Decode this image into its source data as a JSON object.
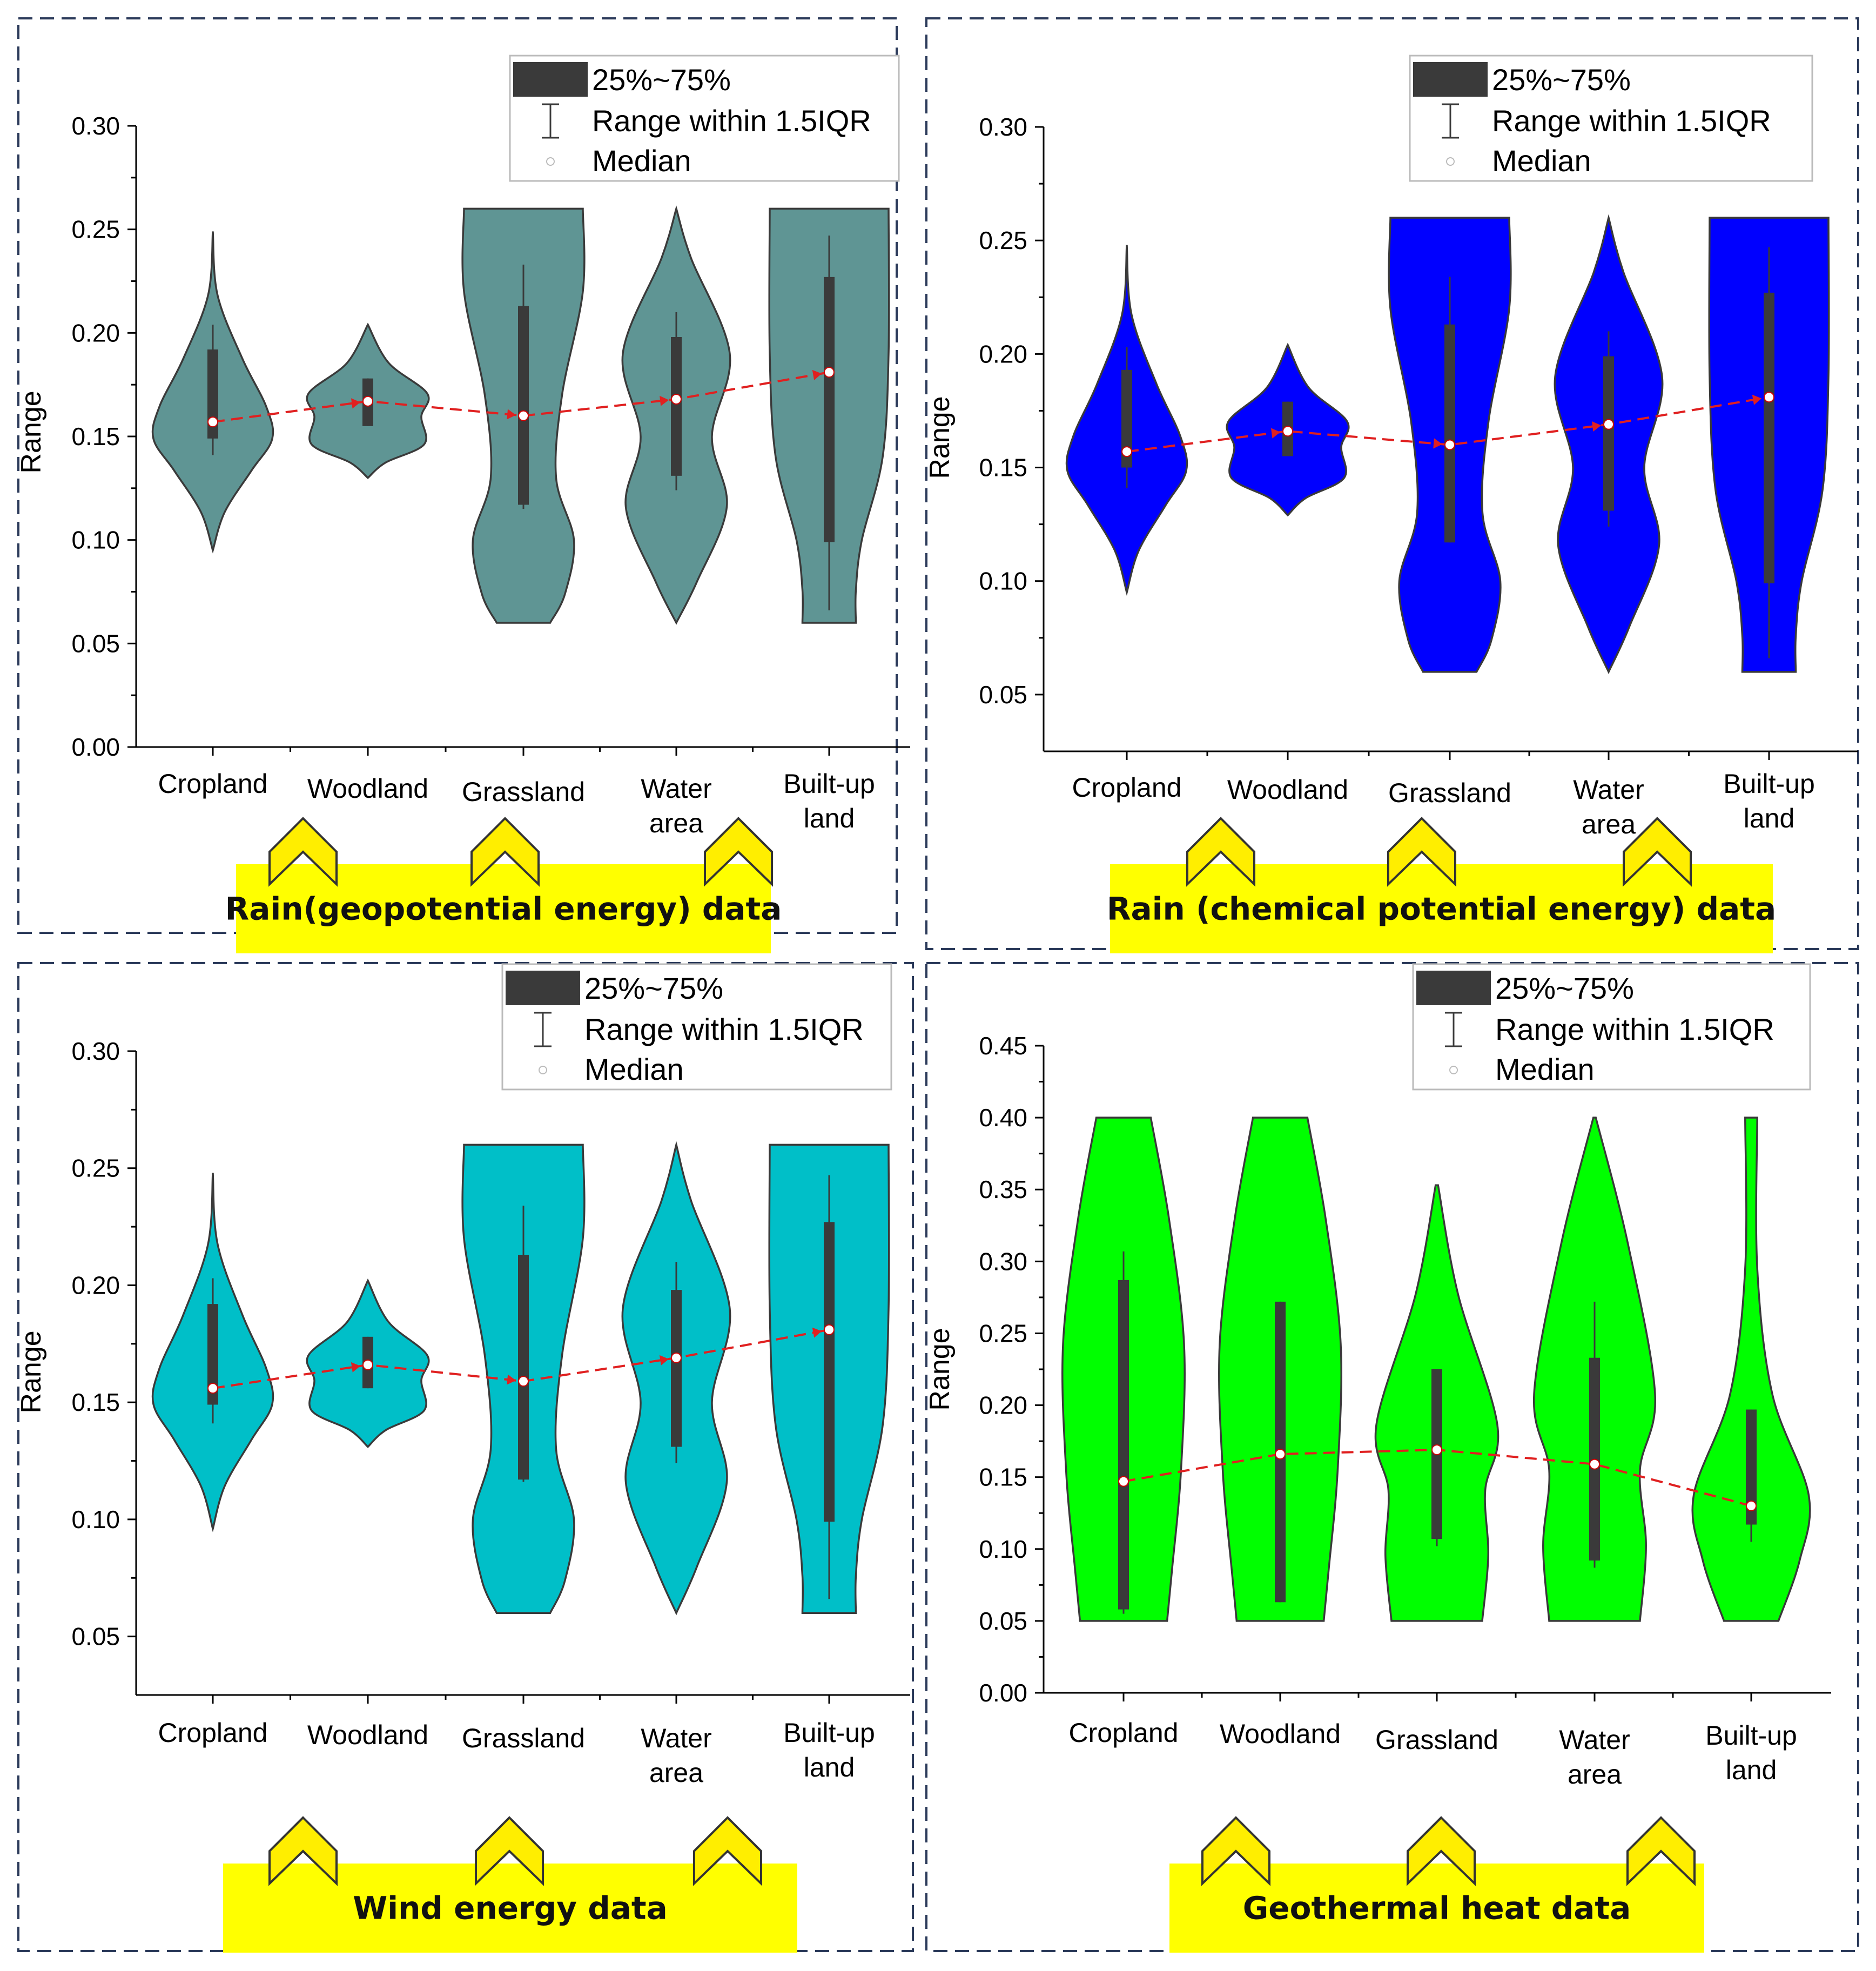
{
  "legend": {
    "iqr_label": "25%~75%",
    "range_label": "Range within 1.5IQR",
    "median_label": "Median"
  },
  "colors": {
    "iqr_box": "#3a3a3a",
    "trend_line": "#e02020",
    "banner": "#ffff00",
    "chevron": "#ffee00",
    "frame": "#2b3a5a"
  },
  "chart_data": [
    {
      "type": "violin",
      "ylabel": "Range",
      "ylim": [
        0.0,
        0.3
      ],
      "yticks": [
        "0.00",
        "0.05",
        "0.10",
        "0.15",
        "0.20",
        "0.25",
        "0.30"
      ],
      "fill_color": "#5f9594",
      "banner": "Rain(geopotential energy) data",
      "categories": [
        "Cropland",
        "Woodland",
        "Grassland",
        "Water area",
        "Built-up land"
      ],
      "violins": [
        {
          "min": 0.095,
          "max": 0.249,
          "q1": 0.149,
          "q3": 0.192,
          "median": 0.157,
          "whisker_low": 0.141,
          "whisker_high": 0.204
        },
        {
          "min": 0.13,
          "max": 0.204,
          "q1": 0.155,
          "q3": 0.178,
          "median": 0.167,
          "whisker_low": 0.155,
          "whisker_high": 0.178
        },
        {
          "min": 0.06,
          "max": 0.26,
          "q1": 0.117,
          "q3": 0.213,
          "median": 0.16,
          "whisker_low": 0.115,
          "whisker_high": 0.233
        },
        {
          "min": 0.06,
          "max": 0.26,
          "q1": 0.131,
          "q3": 0.198,
          "median": 0.168,
          "whisker_low": 0.124,
          "whisker_high": 0.21
        },
        {
          "min": 0.06,
          "max": 0.26,
          "q1": 0.099,
          "q3": 0.227,
          "median": 0.181,
          "whisker_low": 0.066,
          "whisker_high": 0.247
        }
      ]
    },
    {
      "type": "violin",
      "ylabel": "Range",
      "ylim": [
        0.025,
        0.3
      ],
      "yticks": [
        "0.05",
        "0.10",
        "0.15",
        "0.20",
        "0.25",
        "0.30"
      ],
      "fill_color": "#0000ff",
      "banner": "Rain (chemical potential energy) data",
      "categories": [
        "Cropland",
        "Woodland",
        "Grassland",
        "Water area",
        "Built-up land"
      ],
      "violins": [
        {
          "min": 0.095,
          "max": 0.248,
          "q1": 0.15,
          "q3": 0.193,
          "median": 0.157,
          "whisker_low": 0.141,
          "whisker_high": 0.203
        },
        {
          "min": 0.129,
          "max": 0.204,
          "q1": 0.155,
          "q3": 0.179,
          "median": 0.166,
          "whisker_low": 0.155,
          "whisker_high": 0.179
        },
        {
          "min": 0.06,
          "max": 0.26,
          "q1": 0.117,
          "q3": 0.213,
          "median": 0.16,
          "whisker_low": 0.117,
          "whisker_high": 0.234
        },
        {
          "min": 0.06,
          "max": 0.26,
          "q1": 0.131,
          "q3": 0.199,
          "median": 0.169,
          "whisker_low": 0.124,
          "whisker_high": 0.21
        },
        {
          "min": 0.06,
          "max": 0.26,
          "q1": 0.099,
          "q3": 0.227,
          "median": 0.181,
          "whisker_low": 0.066,
          "whisker_high": 0.247
        }
      ]
    },
    {
      "type": "violin",
      "ylabel": "Range",
      "ylim": [
        0.025,
        0.3
      ],
      "yticks": [
        "0.05",
        "0.10",
        "0.15",
        "0.20",
        "0.25",
        "0.30"
      ],
      "fill_color": "#00bfc8",
      "banner": "Wind energy data",
      "categories": [
        "Cropland",
        "Woodland",
        "Grassland",
        "Water area",
        "Built-up land"
      ],
      "violins": [
        {
          "min": 0.096,
          "max": 0.248,
          "q1": 0.149,
          "q3": 0.192,
          "median": 0.156,
          "whisker_low": 0.141,
          "whisker_high": 0.203
        },
        {
          "min": 0.131,
          "max": 0.202,
          "q1": 0.156,
          "q3": 0.178,
          "median": 0.166,
          "whisker_low": 0.156,
          "whisker_high": 0.178
        },
        {
          "min": 0.06,
          "max": 0.26,
          "q1": 0.117,
          "q3": 0.213,
          "median": 0.159,
          "whisker_low": 0.116,
          "whisker_high": 0.234
        },
        {
          "min": 0.06,
          "max": 0.26,
          "q1": 0.131,
          "q3": 0.198,
          "median": 0.169,
          "whisker_low": 0.124,
          "whisker_high": 0.21
        },
        {
          "min": 0.06,
          "max": 0.26,
          "q1": 0.099,
          "q3": 0.227,
          "median": 0.181,
          "whisker_low": 0.066,
          "whisker_high": 0.247
        }
      ]
    },
    {
      "type": "violin",
      "ylabel": "Range",
      "ylim": [
        0.0,
        0.45
      ],
      "yticks": [
        "0.00",
        "0.05",
        "0.10",
        "0.15",
        "0.20",
        "0.25",
        "0.30",
        "0.35",
        "0.40",
        "0.45"
      ],
      "fill_color": "#00ff00",
      "banner": "Geothermal heat data",
      "categories": [
        "Cropland",
        "Woodland",
        "Grassland",
        "Water area",
        "Built-up land"
      ],
      "violins": [
        {
          "min": 0.05,
          "max": 0.4,
          "q1": 0.058,
          "q3": 0.287,
          "median": 0.147,
          "whisker_low": 0.055,
          "whisker_high": 0.307
        },
        {
          "min": 0.05,
          "max": 0.4,
          "q1": 0.063,
          "q3": 0.272,
          "median": 0.166,
          "whisker_low": 0.063,
          "whisker_high": 0.272
        },
        {
          "min": 0.05,
          "max": 0.353,
          "q1": 0.107,
          "q3": 0.225,
          "median": 0.169,
          "whisker_low": 0.102,
          "whisker_high": 0.225
        },
        {
          "min": 0.05,
          "max": 0.4,
          "q1": 0.092,
          "q3": 0.233,
          "median": 0.159,
          "whisker_low": 0.087,
          "whisker_high": 0.272
        },
        {
          "min": 0.05,
          "max": 0.4,
          "q1": 0.117,
          "q3": 0.197,
          "median": 0.13,
          "whisker_low": 0.105,
          "whisker_high": 0.197
        }
      ]
    }
  ]
}
